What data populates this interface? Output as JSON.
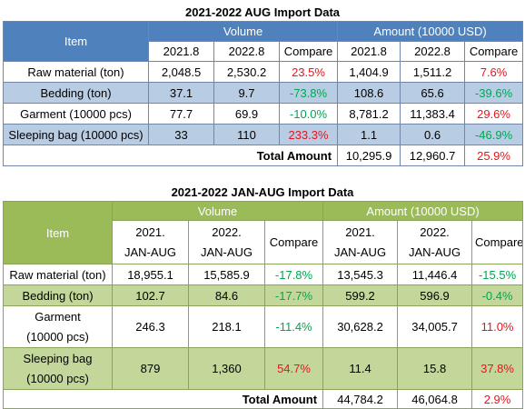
{
  "table1": {
    "title": "2021-2022 AUG Import Data",
    "item_header": "Item",
    "volume_header": "Volume",
    "amount_header": "Amount (10000 USD)",
    "sub_headers": [
      "2021.8",
      "2022.8",
      "Compare",
      "2021.8",
      "2022.8",
      "Compare"
    ],
    "rows": [
      {
        "item": "Raw material (ton)",
        "v1": "2,048.5",
        "v2": "2,530.2",
        "vc": "23.5%",
        "a1": "1,404.9",
        "a2": "1,511.2",
        "ac": "7.6%"
      },
      {
        "item": "Bedding (ton)",
        "v1": "37.1",
        "v2": "9.7",
        "vc": "-73.8%",
        "a1": "108.6",
        "a2": "65.6",
        "ac": "-39.6%"
      },
      {
        "item": "Garment (10000 pcs)",
        "v1": "77.7",
        "v2": "69.9",
        "vc": "-10.0%",
        "a1": "8,781.2",
        "a2": "11,383.4",
        "ac": "29.6%"
      },
      {
        "item": "Sleeping bag (10000 pcs)",
        "v1": "33",
        "v2": "110",
        "vc": "233.3%",
        "a1": "1.1",
        "a2": "0.6",
        "ac": "-46.9%"
      }
    ],
    "total_label": "Total Amount",
    "total": {
      "a1": "10,295.9",
      "a2": "12,960.7",
      "ac": "25.9%"
    }
  },
  "table2": {
    "title": "2021-2022 JAN-AUG Import Data",
    "item_header": "Item",
    "volume_header": "Volume",
    "amount_header": "Amount (10000 USD)",
    "sub_headers": [
      {
        "l1": "2021.",
        "l2": "JAN-AUG"
      },
      {
        "l1": "2022.",
        "l2": "JAN-AUG"
      },
      {
        "l1": "Compare",
        "l2": ""
      },
      {
        "l1": "2021.",
        "l2": "JAN-AUG"
      },
      {
        "l1": "2022.",
        "l2": "JAN-AUG"
      },
      {
        "l1": "Compare",
        "l2": ""
      }
    ],
    "rows": [
      {
        "item1": "Raw material (ton)",
        "item2": "",
        "v1": "18,955.1",
        "v2": "15,585.9",
        "vc": "-17.8%",
        "a1": "13,545.3",
        "a2": "11,446.4",
        "ac": "-15.5%"
      },
      {
        "item1": "Bedding (ton)",
        "item2": "",
        "v1": "102.7",
        "v2": "84.6",
        "vc": "-17.7%",
        "a1": "599.2",
        "a2": "596.9",
        "ac": "-0.4%"
      },
      {
        "item1": "Garment",
        "item2": "(10000 pcs)",
        "v1": "246.3",
        "v2": "218.1",
        "vc": "-11.4%",
        "a1": "30,628.2",
        "a2": "34,005.7",
        "ac": "11.0%"
      },
      {
        "item1": "Sleeping bag",
        "item2": "(10000 pcs)",
        "v1": "879",
        "v2": "1,360",
        "vc": "54.7%",
        "a1": "11.4",
        "a2": "15.8",
        "ac": "37.8%"
      }
    ],
    "total_label": "Total Amount",
    "total": {
      "a1": "44,784.2",
      "a2": "46,064.8",
      "ac": "2.9%"
    }
  },
  "colors": {
    "negative": "#00a651",
    "positive": "#e8141e",
    "header1": "#4f81bd",
    "header2": "#9bbb59"
  }
}
